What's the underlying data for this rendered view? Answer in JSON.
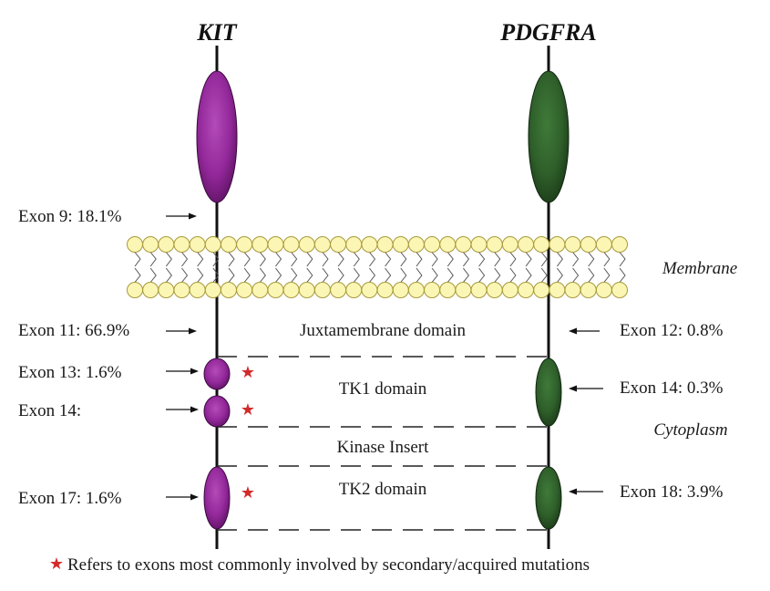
{
  "genes": {
    "kit": "KIT",
    "pdgfra": "PDGFRA"
  },
  "labels": {
    "membrane": "Membrane",
    "cytoplasm": "Cytoplasm"
  },
  "domains": {
    "juxtamembrane": "Juxtamembrane domain",
    "tk1": "TK1 domain",
    "kinase_insert": "Kinase Insert",
    "tk2": "TK2 domain"
  },
  "kit_exons": {
    "exon9": "Exon 9: 18.1%",
    "exon11": "Exon 11: 66.9%",
    "exon13": "Exon 13: 1.6%",
    "exon14": "Exon 14:",
    "exon17": "Exon 17: 1.6%"
  },
  "pdgfra_exons": {
    "exon12": "Exon 12: 0.8%",
    "exon14": "Exon 14: 0.3%",
    "exon18": "Exon 18: 3.9%"
  },
  "footnote": {
    "star": "★",
    "text": "Refers to exons most commonly involved by secondary/acquired mutations"
  },
  "colors": {
    "kit_fill": "#93289a",
    "pdgfra_fill": "#2f5f2a",
    "star": "#d42a2a",
    "lipid_head": "#fbf6b4"
  }
}
